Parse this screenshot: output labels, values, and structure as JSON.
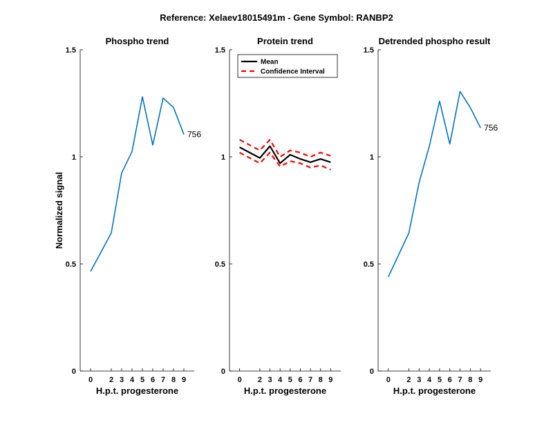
{
  "figure_title": "Reference:  Xelaev18015491m - Gene Symbol:  RANBP2",
  "colors": {
    "phospho": "#0072BD",
    "mean": "#000000",
    "ci": "#FF0000"
  },
  "chart_data": [
    {
      "type": "line",
      "title": "Phospho trend",
      "xlabel": "H.p.t. progesterone",
      "ylabel": "Normalized signal",
      "xlim": [
        -1,
        10
      ],
      "ylim": [
        0,
        1.5
      ],
      "x_ticks": [
        0,
        2,
        3,
        4,
        5,
        6,
        7,
        8,
        9
      ],
      "y_ticks": [
        0,
        0.5,
        1,
        1.5
      ],
      "y_tick_labels": [
        "0",
        "0.5",
        "1",
        "1.5"
      ],
      "series": [
        {
          "x": [
            0,
            2,
            3,
            4,
            5,
            6,
            7,
            8,
            9
          ],
          "y": [
            0.465,
            0.645,
            0.925,
            1.025,
            1.28,
            1.055,
            1.275,
            1.23,
            1.105
          ],
          "end_label": "756"
        }
      ]
    },
    {
      "type": "line",
      "title": "Protein trend",
      "xlabel": "H.p.t. progesterone",
      "ylabel": "",
      "xlim": [
        -1,
        10
      ],
      "ylim": [
        0,
        1.5
      ],
      "x_ticks": [
        0,
        2,
        3,
        4,
        5,
        6,
        7,
        8,
        9
      ],
      "y_ticks": [
        0,
        0.5,
        1,
        1.5
      ],
      "y_tick_labels": [
        "0",
        "0.5",
        "1",
        "1.5"
      ],
      "legend": {
        "placement": "top-left",
        "entries": [
          "Mean",
          "Confidence Interval"
        ]
      },
      "series": [
        {
          "name": "Mean",
          "x": [
            0,
            2,
            3,
            4,
            5,
            6,
            7,
            8,
            9
          ],
          "y": [
            1.045,
            0.995,
            1.05,
            0.97,
            1.01,
            0.99,
            0.975,
            0.99,
            0.975
          ]
        },
        {
          "name": "Confidence Interval",
          "x": [
            0,
            2,
            3,
            4,
            5,
            6,
            7,
            8,
            9
          ],
          "y": [
            1.08,
            1.03,
            1.08,
            1.0,
            1.03,
            1.02,
            1.0,
            1.02,
            1.005
          ]
        },
        {
          "name": "Confidence Interval",
          "x": [
            0,
            2,
            3,
            4,
            5,
            6,
            7,
            8,
            9
          ],
          "y": [
            1.02,
            0.97,
            1.02,
            0.955,
            0.98,
            0.97,
            0.95,
            0.96,
            0.94
          ]
        }
      ]
    },
    {
      "type": "line",
      "title": "Detrended phospho result",
      "xlabel": "H.p.t. progesterone",
      "ylabel": "",
      "xlim": [
        -1,
        10
      ],
      "ylim": [
        0,
        1.5
      ],
      "x_ticks": [
        0,
        2,
        3,
        4,
        5,
        6,
        7,
        8,
        9
      ],
      "y_ticks": [
        0,
        0.5,
        1,
        1.5
      ],
      "y_tick_labels": [
        "0",
        "0.5",
        "1",
        "1.5"
      ],
      "series": [
        {
          "x": [
            0,
            2,
            3,
            4,
            5,
            6,
            7,
            8,
            9
          ],
          "y": [
            0.44,
            0.645,
            0.88,
            1.05,
            1.26,
            1.06,
            1.305,
            1.23,
            1.135
          ],
          "end_label": "756"
        }
      ]
    }
  ]
}
